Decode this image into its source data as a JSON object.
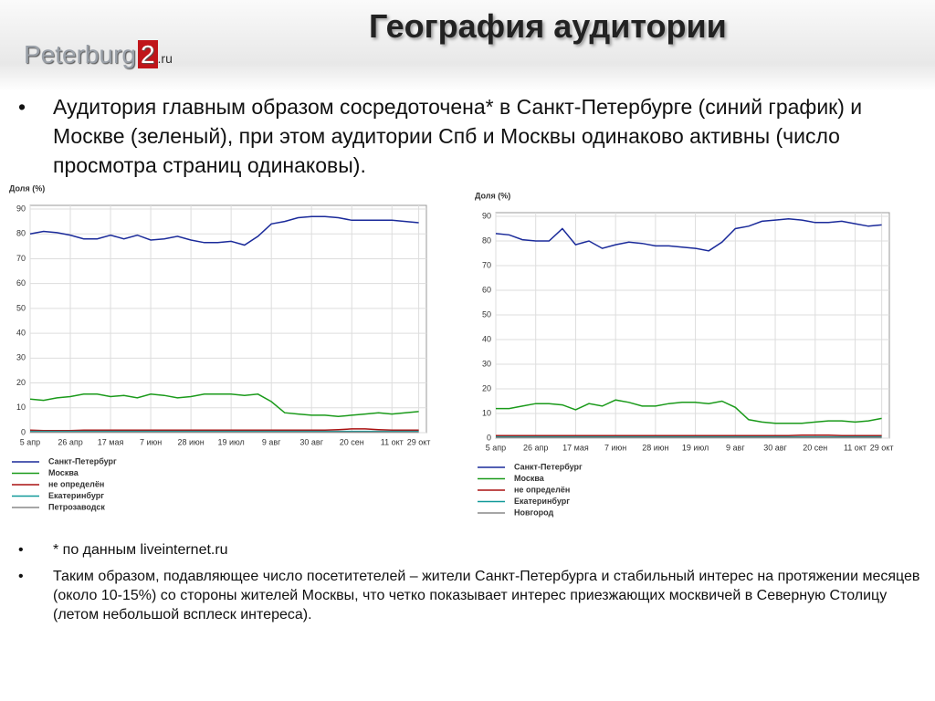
{
  "slide": {
    "title": "География аудитории",
    "logo": {
      "name": "Peterburg",
      "num": "2",
      "tld": ".ru"
    },
    "bullets_top": [
      "Аудитория главным образом сосредоточена* в Санкт-Петербурге (синий график) и Москве (зеленый), при этом аудитории Спб и Москвы одинаково активны (число просмотра страниц одинаковы)."
    ],
    "bullets_bottom": [
      "* по данным liveinternet.ru",
      "Таким образом, подавляющее число посетитетелей – жители Санкт-Петербурга и стабильный интерес на протяжении месяцев (около 10-15%) со стороны жителей Москвы, что четко показывает интерес приезжающих москвичей в Северную Столицу (летом небольшой всплеск интереса)."
    ]
  },
  "chart_data": [
    {
      "type": "line",
      "y_label": "Доля (%)",
      "ylim": [
        0,
        90
      ],
      "yticks": [
        0,
        10,
        20,
        30,
        40,
        50,
        60,
        70,
        80,
        90
      ],
      "grid": true,
      "categories": [
        "5 апр",
        null,
        null,
        "26 апр",
        null,
        null,
        "17 мая",
        null,
        null,
        "7 июн",
        null,
        null,
        "28 июн",
        null,
        null,
        "19 июл",
        null,
        null,
        "9 авг",
        null,
        null,
        "30 авг",
        null,
        null,
        "20 сен",
        null,
        null,
        "11 окт",
        null,
        "29 окт"
      ],
      "series": [
        {
          "name": "Санкт-Петербург",
          "color": "#1a2a9a",
          "values": [
            80,
            81,
            80.5,
            79.5,
            78,
            78,
            79.5,
            78,
            79.5,
            77.5,
            78,
            79,
            77.5,
            76.5,
            76.5,
            77,
            75.5,
            79,
            84,
            85,
            86.5,
            87,
            87,
            86.5,
            85.5,
            85.5,
            85.5,
            85.5,
            85,
            84.5
          ]
        },
        {
          "name": "Москва",
          "color": "#1a9a1a",
          "values": [
            13.5,
            13,
            14,
            14.5,
            15.5,
            15.5,
            14.5,
            15,
            14,
            15.5,
            15,
            14,
            14.5,
            15.5,
            15.5,
            15.5,
            15,
            15.5,
            12.5,
            8,
            7.5,
            7,
            7,
            6.5,
            7,
            7.5,
            8,
            7.5,
            8,
            8.5
          ]
        },
        {
          "name": "не определён",
          "color": "#aa1111",
          "values": [
            1,
            0.8,
            0.8,
            0.8,
            1,
            1,
            1,
            1,
            1,
            1,
            1,
            1,
            1,
            1,
            1,
            1,
            1,
            1,
            1,
            1,
            1,
            1,
            1,
            1.2,
            1.5,
            1.5,
            1.2,
            1,
            1,
            1
          ]
        },
        {
          "name": "Екатеринбург",
          "color": "#119999",
          "values": [
            0.5,
            0.5,
            0.5,
            0.5,
            0.5,
            0.5,
            0.5,
            0.5,
            0.5,
            0.5,
            0.5,
            0.5,
            0.5,
            0.5,
            0.5,
            0.5,
            0.5,
            0.5,
            0.5,
            0.5,
            0.5,
            0.5,
            0.5,
            0.5,
            0.5,
            0.5,
            0.5,
            0.5,
            0.5,
            0.5
          ]
        },
        {
          "name": "Петрозаводск",
          "color": "#888888",
          "values": [
            0.2,
            0.2,
            0.2,
            0.2,
            0.2,
            0.2,
            0.2,
            0.2,
            0.2,
            0.2,
            0.2,
            0.2,
            0.2,
            0.2,
            0.2,
            0.2,
            0.2,
            0.2,
            0.2,
            0.2,
            0.2,
            0.2,
            0.2,
            0.2,
            0.2,
            0.2,
            0.2,
            0.2,
            0.2,
            0.2
          ]
        }
      ]
    },
    {
      "type": "line",
      "y_label": "Доля (%)",
      "ylim": [
        0,
        90
      ],
      "yticks": [
        0,
        10,
        20,
        30,
        40,
        50,
        60,
        70,
        80,
        90
      ],
      "grid": true,
      "categories": [
        "5 апр",
        null,
        null,
        "26 апр",
        null,
        null,
        "17 мая",
        null,
        null,
        "7 июн",
        null,
        null,
        "28 июн",
        null,
        null,
        "19 июл",
        null,
        null,
        "9 авг",
        null,
        null,
        "30 авг",
        null,
        null,
        "20 сен",
        null,
        null,
        "11 окт",
        null,
        "29 окт"
      ],
      "series": [
        {
          "name": "Санкт-Петербург",
          "color": "#1a2a9a",
          "values": [
            83,
            82.5,
            80.5,
            80,
            80,
            85,
            78.5,
            80,
            77,
            78.5,
            79.5,
            79,
            78,
            78,
            77.5,
            77,
            76,
            79.5,
            85,
            86,
            88,
            88.5,
            89,
            88.5,
            87.5,
            87.5,
            88,
            87,
            86,
            86.5
          ]
        },
        {
          "name": "Москва",
          "color": "#1a9a1a",
          "values": [
            12,
            12,
            13,
            14,
            14,
            13.5,
            11.5,
            14,
            13,
            15.5,
            14.5,
            13,
            13,
            14,
            14.5,
            14.5,
            14,
            15,
            12.5,
            7.5,
            6.5,
            6,
            6,
            6,
            6.5,
            7,
            7,
            6.5,
            7,
            8
          ]
        },
        {
          "name": "не определён",
          "color": "#aa1111",
          "values": [
            1,
            1,
            1,
            1,
            1,
            1,
            1,
            1,
            1,
            1,
            1,
            1,
            1,
            1,
            1,
            1,
            1,
            1,
            1,
            1,
            1,
            1,
            1,
            1.2,
            1.2,
            1.2,
            1,
            1,
            1,
            1
          ]
        },
        {
          "name": "Екатеринбург",
          "color": "#119999",
          "values": [
            0.5,
            0.5,
            0.5,
            0.5,
            0.5,
            0.5,
            0.5,
            0.5,
            0.5,
            0.5,
            0.5,
            0.5,
            0.5,
            0.5,
            0.5,
            0.5,
            0.5,
            0.5,
            0.5,
            0.5,
            0.5,
            0.5,
            0.5,
            0.5,
            0.5,
            0.5,
            0.5,
            0.5,
            0.5,
            0.5
          ]
        },
        {
          "name": "Новгород",
          "color": "#888888",
          "values": [
            0.2,
            0.2,
            0.2,
            0.2,
            0.2,
            0.2,
            0.2,
            0.2,
            0.2,
            0.2,
            0.2,
            0.2,
            0.2,
            0.2,
            0.2,
            0.2,
            0.2,
            0.2,
            0.2,
            0.2,
            0.2,
            0.2,
            0.2,
            0.2,
            0.2,
            0.2,
            0.2,
            0.2,
            0.2,
            0.2
          ]
        }
      ]
    }
  ]
}
